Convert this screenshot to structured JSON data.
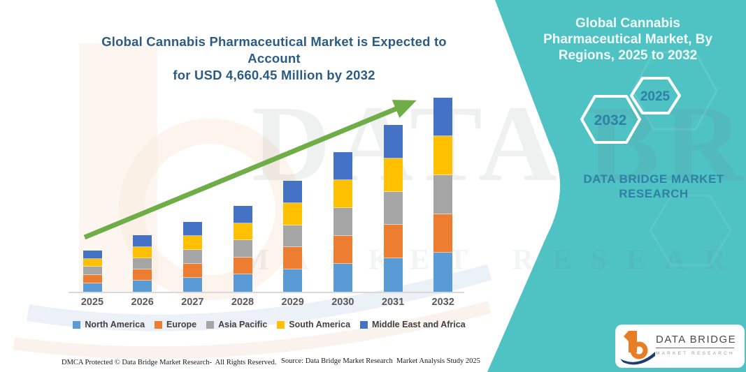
{
  "title": {
    "line1": "Global Cannabis Pharmaceutical Market is Expected to Account",
    "line2": "for USD 4,660.45 Million by 2032"
  },
  "side_panel": {
    "heading": "Global Cannabis Pharmaceutical Market, By Regions, 2025 to 2032",
    "hexagon_badges": [
      "2032",
      "2025"
    ],
    "brand_line1": "DATA BRIDGE MARKET",
    "brand_line2": "RESEARCH",
    "bg_color": "#4FC2C4",
    "accent_text_color": "#2F7FA6"
  },
  "watermark": {
    "line1": "DATA BRIDGE",
    "line2": "MARKET RESEARCH"
  },
  "chart_data": {
    "type": "bar",
    "stacked": true,
    "title": "Global Cannabis Pharmaceutical Market is Expected to Account for USD 4,660.45 Million by 2032",
    "unit": "USD Million",
    "categories": [
      "2025",
      "2026",
      "2027",
      "2028",
      "2029",
      "2030",
      "2031",
      "2032"
    ],
    "totals": [
      995,
      1350,
      1675,
      2060,
      2660,
      3345,
      4000,
      4660.45
    ],
    "series": [
      {
        "name": "North America",
        "color": "#5B9BD5",
        "values": [
          199,
          270,
          335,
          412,
          532,
          669,
          800,
          932.09
        ]
      },
      {
        "name": "Europe",
        "color": "#ED7D31",
        "values": [
          199,
          270,
          335,
          412,
          532,
          669,
          800,
          932.09
        ]
      },
      {
        "name": "Asia Pacific",
        "color": "#A5A5A5",
        "values": [
          199,
          270,
          335,
          412,
          532,
          669,
          800,
          932.09
        ]
      },
      {
        "name": "South America",
        "color": "#FFC000",
        "values": [
          199,
          270,
          335,
          412,
          532,
          669,
          800,
          932.09
        ]
      },
      {
        "name": "Middle East and Africa",
        "color": "#4472C4",
        "values": [
          199,
          270,
          335,
          412,
          532,
          669,
          800,
          932.09
        ]
      }
    ],
    "trend_line": {
      "present": true,
      "color": "#6FAD47"
    },
    "legend_position": "bottom",
    "grid": false,
    "y_axis_visible": false,
    "ylim": [
      0,
      4800
    ]
  },
  "footer": {
    "dmca": "DMCA Protected © Data Bridge Market Research-  All Rights Reserved.",
    "source": "Source: Data Bridge Market Research  Market Analysis Study 2025"
  },
  "logo_card": {
    "icon": "data-bridge-b-logo",
    "brand": "DATA BRIDGE",
    "sub_brand": "MARKET RESEARCH"
  }
}
